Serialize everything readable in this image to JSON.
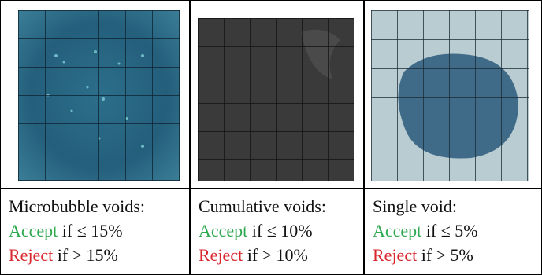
{
  "columns": [
    {
      "title": "Microbubble voids:",
      "accept": {
        "label": "Accept",
        "condition": "if ≤ 15%"
      },
      "reject": {
        "label": "Reject",
        "condition": "if > 15%"
      }
    },
    {
      "title": "Cumulative voids:",
      "accept": {
        "label": "Accept",
        "condition": "if ≤ 10%"
      },
      "reject": {
        "label": "Reject",
        "condition": "if > 10%"
      }
    },
    {
      "title": "Single void:",
      "accept": {
        "label": "Accept",
        "condition": "if ≤ 5%"
      },
      "reject": {
        "label": "Reject",
        "condition": "if > 5%"
      }
    }
  ]
}
